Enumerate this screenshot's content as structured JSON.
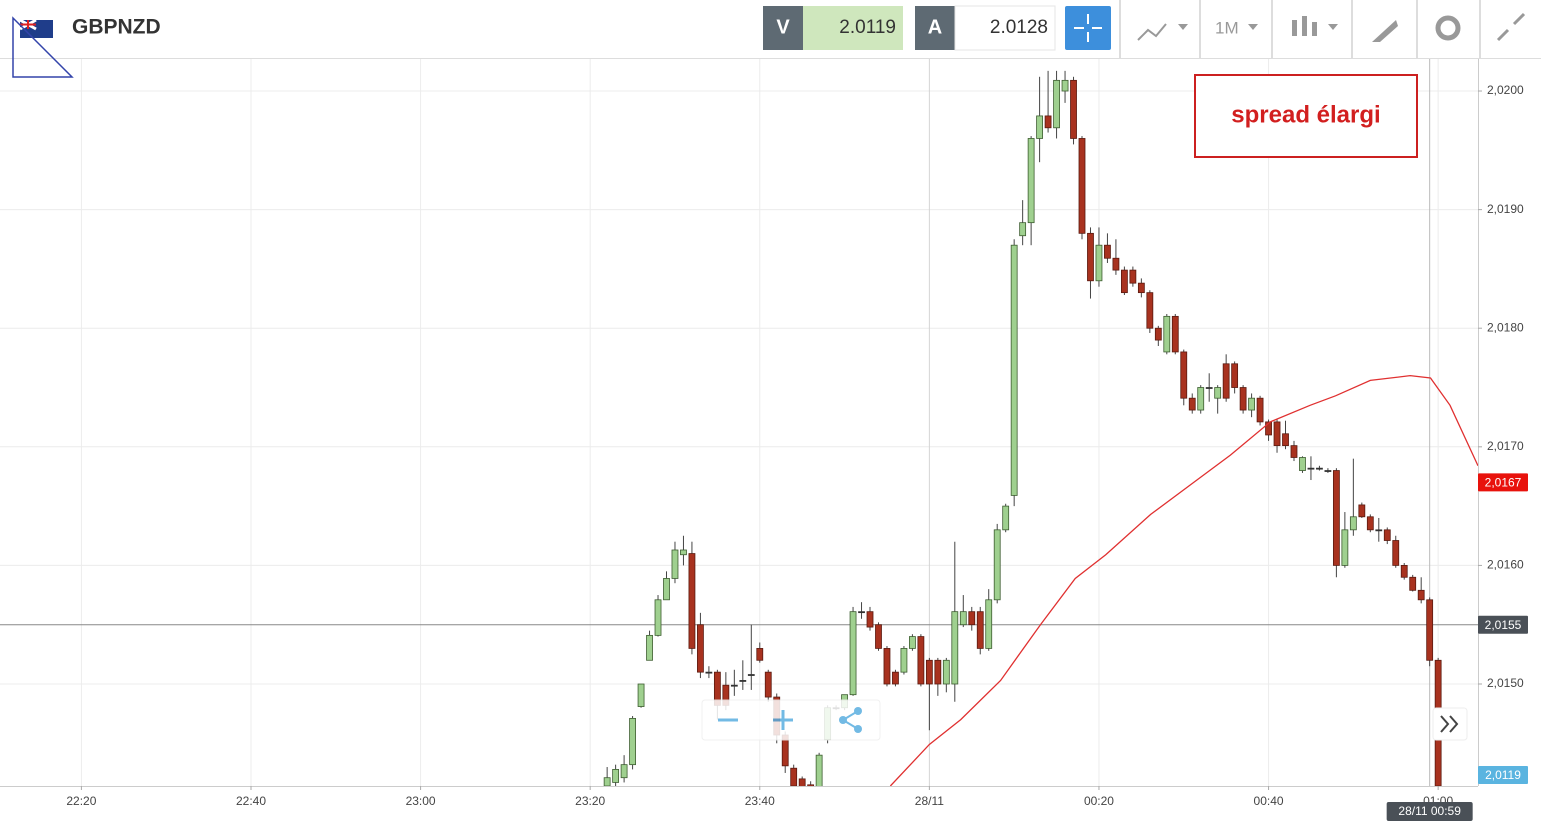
{
  "header": {
    "symbol": "GBPNZD",
    "bid_label": "V",
    "bid": 2.0119,
    "ask_label": "A",
    "ask": 2.0128,
    "timeframe": "1M"
  },
  "chart_data": {
    "type": "candlestick",
    "x": [
      -38,
      -37,
      -36,
      -35,
      -34,
      -33,
      -32,
      -31,
      -30,
      -29,
      -28,
      -27,
      -26,
      -25,
      -24,
      -23,
      -22,
      -21,
      -20,
      -19,
      -18,
      -17,
      -16,
      -15,
      -14,
      -13,
      -12,
      -11,
      -10,
      -9,
      -8,
      -7,
      -6,
      -5,
      -4,
      -3,
      -2,
      -1,
      0,
      1,
      2,
      3,
      4,
      5,
      6,
      7,
      8,
      9,
      10,
      11,
      12,
      13,
      14,
      15,
      16,
      17,
      18,
      19,
      20,
      21,
      22,
      23,
      24,
      25,
      26,
      27,
      28,
      29,
      30,
      31,
      32,
      33,
      34,
      35,
      36,
      37,
      38,
      39,
      40,
      41,
      42,
      43,
      44,
      45,
      46,
      47,
      48,
      49,
      50,
      51,
      52,
      53,
      54,
      55,
      56,
      57,
      58,
      59,
      60
    ],
    "open": [
      2.01414,
      2.01417,
      2.01421,
      2.01432,
      2.01481,
      2.0152,
      2.01541,
      2.01571,
      2.01589,
      2.01609,
      2.0161,
      2.0155,
      2.0151,
      2.0151,
      2.01499,
      2.01499,
      2.01503,
      2.01508,
      2.0153,
      2.0151,
      2.01489,
      2.01457,
      2.01429,
      2.0142,
      2.01415,
      2.0141,
      2.01453,
      2.0148,
      2.0148,
      2.01491,
      2.01561,
      2.01561,
      2.0155,
      2.0153,
      2.0151,
      2.0151,
      2.0153,
      2.0154,
      2.0152,
      2.0152,
      2.015,
      2.015,
      2.0155,
      2.01561,
      2.01561,
      2.0153,
      2.01571,
      2.0163,
      2.01659,
      2.01878,
      2.01889,
      2.0196,
      2.01979,
      2.01969,
      2.02,
      2.02009,
      2.0196,
      2.0188,
      2.0184,
      2.0187,
      2.01859,
      2.01849,
      2.01849,
      2.01838,
      2.0183,
      2.018,
      2.0178,
      2.0181,
      2.0178,
      2.01741,
      2.01731,
      2.0175,
      2.01741,
      2.0177,
      2.0177,
      2.0175,
      2.01731,
      2.01741,
      2.01721,
      2.01721,
      2.01711,
      2.01701,
      2.0168,
      2.01682,
      2.01682,
      2.0168,
      2.0168,
      2.016,
      2.0163,
      2.01651,
      2.01641,
      2.0163,
      2.0163,
      2.01621,
      2.016,
      2.0159,
      2.01579,
      2.01571,
      2.0152
    ],
    "high": [
      2.0143,
      2.01432,
      2.0144,
      2.01473,
      2.015,
      2.01545,
      2.01575,
      2.01595,
      2.0162,
      2.01625,
      2.0162,
      2.0156,
      2.01515,
      2.01512,
      2.0151,
      2.01512,
      2.0152,
      2.0155,
      2.01535,
      2.01512,
      2.01492,
      2.0146,
      2.01432,
      2.01422,
      2.01418,
      2.01442,
      2.01482,
      2.01482,
      2.01491,
      2.01565,
      2.01569,
      2.01565,
      2.01552,
      2.01532,
      2.01512,
      2.01532,
      2.01542,
      2.01542,
      2.01522,
      2.01522,
      2.01522,
      2.0162,
      2.01575,
      2.01565,
      2.01565,
      2.0158,
      2.01635,
      2.01652,
      2.01875,
      2.01908,
      2.01962,
      2.02012,
      2.02017,
      2.02017,
      2.02017,
      2.02012,
      2.01962,
      2.01885,
      2.01885,
      2.0188,
      2.01875,
      2.01852,
      2.01852,
      2.01842,
      2.01832,
      2.01802,
      2.01812,
      2.01812,
      2.01782,
      2.01745,
      2.01752,
      2.01762,
      2.01752,
      2.01778,
      2.01772,
      2.01752,
      2.01745,
      2.01743,
      2.01723,
      2.01723,
      2.01722,
      2.01705,
      2.01692,
      2.01692,
      2.01684,
      2.01682,
      2.01682,
      2.01645,
      2.0169,
      2.01653,
      2.01643,
      2.0164,
      2.01632,
      2.01625,
      2.01602,
      2.01592,
      2.0159,
      2.01573,
      2.01522
    ],
    "low": [
      2.0141,
      2.01414,
      2.01417,
      2.01428,
      2.0148,
      2.0152,
      2.0154,
      2.01571,
      2.01585,
      2.016,
      2.01525,
      2.01505,
      2.01505,
      2.0147,
      2.01478,
      2.0149,
      2.01495,
      2.01495,
      2.01518,
      2.01485,
      2.0145,
      2.01425,
      2.0141,
      2.01405,
      2.014,
      2.01405,
      2.0145,
      2.01478,
      2.01478,
      2.0149,
      2.01555,
      2.01545,
      2.01528,
      2.01498,
      2.01498,
      2.01508,
      2.01528,
      2.01498,
      2.01461,
      2.0149,
      2.01493,
      2.01485,
      2.01548,
      2.01545,
      2.01525,
      2.01528,
      2.01568,
      2.01628,
      2.0165,
      2.0187,
      2.0187,
      2.0194,
      2.01965,
      2.0196,
      2.0199,
      2.01955,
      2.01875,
      2.01825,
      2.01835,
      2.01855,
      2.01845,
      2.01828,
      2.01835,
      2.01826,
      2.01796,
      2.01785,
      2.01778,
      2.01778,
      2.01735,
      2.01728,
      2.01728,
      2.01738,
      2.01728,
      2.01738,
      2.01745,
      2.01728,
      2.01725,
      2.01718,
      2.01705,
      2.01695,
      2.01698,
      2.01688,
      2.01678,
      2.01672,
      2.0168,
      2.01678,
      2.0159,
      2.01598,
      2.01625,
      2.0164,
      2.01628,
      2.0162,
      2.01618,
      2.01598,
      2.01588,
      2.01578,
      2.01568,
      2.01515,
      2.0141
    ],
    "close": [
      2.01421,
      2.01428,
      2.01432,
      2.01471,
      2.015,
      2.01541,
      2.01571,
      2.01589,
      2.01613,
      2.01613,
      2.0153,
      2.0151,
      2.0151,
      2.01482,
      2.01482,
      2.01499,
      2.01503,
      2.01508,
      2.0152,
      2.01489,
      2.01457,
      2.01431,
      2.01414,
      2.0141,
      2.01405,
      2.0144,
      2.0148,
      2.0148,
      2.01491,
      2.01561,
      2.01561,
      2.01548,
      2.0153,
      2.015,
      2.015,
      2.0153,
      2.0154,
      2.015,
      2.015,
      2.015,
      2.0152,
      2.01561,
      2.01561,
      2.0155,
      2.0153,
      2.01571,
      2.0163,
      2.0165,
      2.0187,
      2.01889,
      2.0196,
      2.01979,
      2.01969,
      2.02009,
      2.02009,
      2.0196,
      2.0188,
      2.0184,
      2.0187,
      2.01859,
      2.01849,
      2.0183,
      2.01838,
      2.0183,
      2.018,
      2.0179,
      2.0181,
      2.0178,
      2.01741,
      2.01731,
      2.0175,
      2.0175,
      2.0175,
      2.01741,
      2.0175,
      2.01731,
      2.01741,
      2.01721,
      2.0171,
      2.01701,
      2.01701,
      2.01691,
      2.01691,
      2.01682,
      2.01682,
      2.0168,
      2.016,
      2.0163,
      2.01641,
      2.01641,
      2.0163,
      2.0163,
      2.01621,
      2.016,
      2.0159,
      2.01579,
      2.01571,
      2.0152,
      2.01414
    ],
    "up_color": "#9fd08f",
    "down_color": "#a8321f",
    "series": [
      {
        "type": "line",
        "color": "#e03030",
        "x": [
          -4.6,
          0,
          3.7,
          8.4,
          13.1,
          17.2,
          20.8,
          26.1,
          30.8,
          35.5,
          40.2,
          44.9,
          47.9,
          52,
          56.7,
          59.1,
          61.4,
          64.7
        ],
        "values": [
          2.01414,
          2.01449,
          2.0147,
          2.01503,
          2.0155,
          2.01589,
          2.01609,
          2.01643,
          2.01668,
          2.01693,
          2.01721,
          2.01735,
          2.01743,
          2.01756,
          2.0176,
          2.01758,
          2.01735,
          2.01684
        ]
      }
    ],
    "xlim": [
      -109.6,
      64.7
    ],
    "ylim": [
      2.01414,
      2.02027
    ],
    "xticks": [
      {
        "value": -100,
        "label": "22:20"
      },
      {
        "value": -80,
        "label": "22:40"
      },
      {
        "value": -60,
        "label": "23:00"
      },
      {
        "value": -40,
        "label": "23:20"
      },
      {
        "value": -20,
        "label": "23:40"
      },
      {
        "value": 0,
        "label": "28/11"
      },
      {
        "value": 20,
        "label": "00:20"
      },
      {
        "value": 40,
        "label": "00:40"
      },
      {
        "value": 60,
        "label": "01:00"
      }
    ],
    "yticks": [
      {
        "value": 2.015,
        "label": "2,0150"
      },
      {
        "value": 2.016,
        "label": "2,0160"
      },
      {
        "value": 2.017,
        "label": "2,0170"
      },
      {
        "value": 2.018,
        "label": "2,0180"
      },
      {
        "value": 2.019,
        "label": "2,0190"
      },
      {
        "value": 2.02,
        "label": "2,0200"
      }
    ],
    "grid": true,
    "price_markers": [
      {
        "value": 2.0167,
        "label": "2,0167",
        "color": "#e8120c"
      },
      {
        "value": 2.0155,
        "label": "2,0155",
        "color": "#4a5057"
      },
      {
        "value": 2.0119,
        "label": "2,0119",
        "color": "#5ab4e0"
      }
    ],
    "crosshair": {
      "x": 59,
      "label": "28/11 00:59"
    },
    "annotation": "spread élargi"
  }
}
